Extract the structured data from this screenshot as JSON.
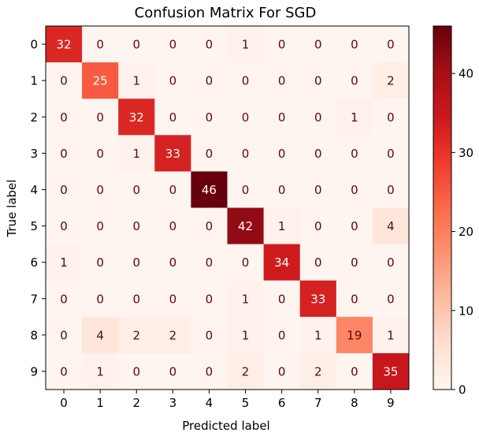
{
  "chart_data": {
    "type": "heatmap",
    "title": "Confusion Matrix For SGD",
    "xlabel": "Predicted label",
    "ylabel": "True label",
    "x_categories": [
      "0",
      "1",
      "2",
      "3",
      "4",
      "5",
      "6",
      "7",
      "8",
      "9"
    ],
    "y_categories": [
      "0",
      "1",
      "2",
      "3",
      "4",
      "5",
      "6",
      "7",
      "8",
      "9"
    ],
    "values": [
      [
        32,
        0,
        0,
        0,
        0,
        1,
        0,
        0,
        0,
        0
      ],
      [
        0,
        25,
        1,
        0,
        0,
        0,
        0,
        0,
        0,
        2
      ],
      [
        0,
        0,
        32,
        0,
        0,
        0,
        0,
        0,
        1,
        0
      ],
      [
        0,
        0,
        1,
        33,
        0,
        0,
        0,
        0,
        0,
        0
      ],
      [
        0,
        0,
        0,
        0,
        46,
        0,
        0,
        0,
        0,
        0
      ],
      [
        0,
        0,
        0,
        0,
        0,
        42,
        1,
        0,
        0,
        4
      ],
      [
        1,
        0,
        0,
        0,
        0,
        0,
        34,
        0,
        0,
        0
      ],
      [
        0,
        0,
        0,
        0,
        0,
        1,
        0,
        33,
        0,
        0
      ],
      [
        0,
        4,
        2,
        2,
        0,
        1,
        0,
        1,
        19,
        1
      ],
      [
        0,
        1,
        0,
        0,
        0,
        2,
        0,
        2,
        0,
        35
      ]
    ],
    "colormap": "Reds",
    "colorbar": {
      "min": 0,
      "max": 46,
      "ticks": [
        0,
        10,
        20,
        30,
        40
      ]
    },
    "grid": false
  }
}
